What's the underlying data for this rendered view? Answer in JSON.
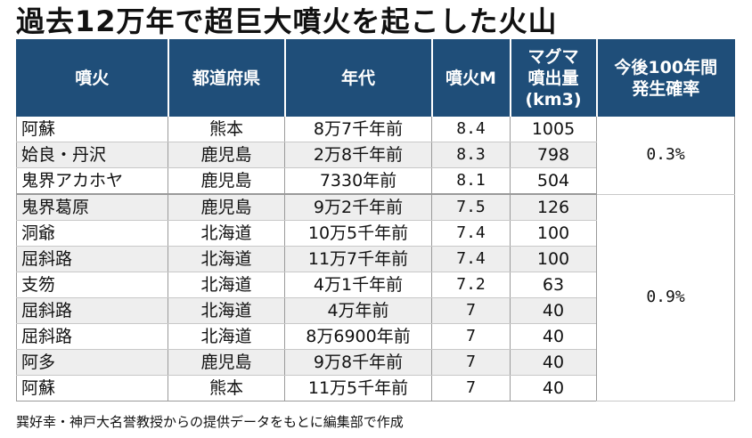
{
  "title": "過去12万年で超巨大噴火を起こした火山",
  "table": {
    "headers": {
      "eruption": "噴火",
      "prefecture": "都道府県",
      "era": "年代",
      "magnitude": "噴火M",
      "volume": "マグマ\n噴出量\n(km3)",
      "probability": "今後100年間\n発生確率"
    },
    "rows": [
      {
        "name": "阿蘇",
        "prefecture": "熊本",
        "era": "8万7千年前",
        "magnitude": "8.4",
        "volume": "1005"
      },
      {
        "name": "姶良・丹沢",
        "prefecture": "鹿児島",
        "era": "2万8千年前",
        "magnitude": "8.3",
        "volume": "798"
      },
      {
        "name": "鬼界アカホヤ",
        "prefecture": "鹿児島",
        "era": "7330年前",
        "magnitude": "8.1",
        "volume": "504"
      },
      {
        "name": "鬼界葛原",
        "prefecture": "鹿児島",
        "era": "9万2千年前",
        "magnitude": "7.5",
        "volume": "126"
      },
      {
        "name": "洞爺",
        "prefecture": "北海道",
        "era": "10万5千年前",
        "magnitude": "7.4",
        "volume": "100"
      },
      {
        "name": "屈斜路",
        "prefecture": "北海道",
        "era": "11万7千年前",
        "magnitude": "7.4",
        "volume": "100"
      },
      {
        "name": "支笏",
        "prefecture": "北海道",
        "era": "4万1千年前",
        "magnitude": "7.2",
        "volume": "63"
      },
      {
        "name": "屈斜路",
        "prefecture": "北海道",
        "era": "4万年前",
        "magnitude": "7",
        "volume": "40"
      },
      {
        "name": "屈斜路",
        "prefecture": "北海道",
        "era": "8万6900年前",
        "magnitude": "7",
        "volume": "40"
      },
      {
        "name": "阿多",
        "prefecture": "鹿児島",
        "era": "9万8千年前",
        "magnitude": "7",
        "volume": "40"
      },
      {
        "name": "阿蘇",
        "prefecture": "熊本",
        "era": "11万5千年前",
        "magnitude": "7",
        "volume": "40"
      }
    ],
    "probabilities": [
      "0.3%",
      "0.9%"
    ]
  },
  "source": "巽好幸・神戸大名誉教授からの提供データをもとに編集部で作成",
  "colors": {
    "header_bg": "#1f4e79",
    "header_text": "#ffffff",
    "row_alt_bg": "#eeeeee",
    "border": "#9a9a9a"
  }
}
